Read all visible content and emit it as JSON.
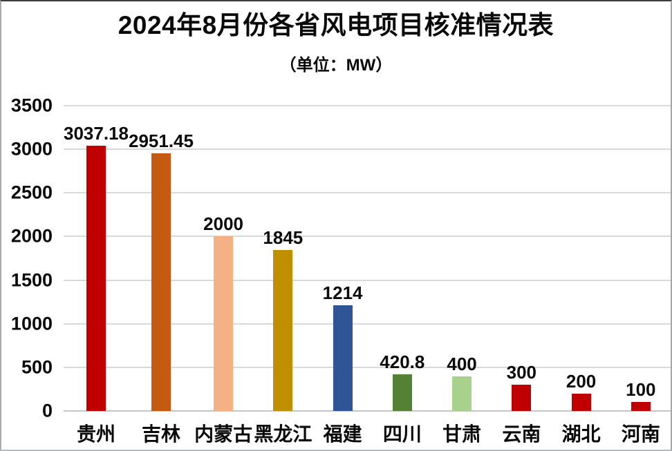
{
  "chart_data": {
    "type": "bar",
    "title": "2024年8月份各省风电项目核准情况表",
    "subtitle": "（单位：MW）",
    "unit": "MW",
    "categories": [
      "贵州",
      "吉林",
      "内蒙古",
      "黑龙江",
      "福建",
      "四川",
      "甘肃",
      "云南",
      "湖北",
      "河南"
    ],
    "values": [
      3037.18,
      2951.45,
      2000,
      1845,
      1214,
      420.8,
      400,
      300,
      200,
      100
    ],
    "value_labels": [
      "3037.18",
      "2951.45",
      "2000",
      "1845",
      "1214",
      "420.8",
      "400",
      "300",
      "200",
      "100"
    ],
    "bar_colors": [
      "#c00000",
      "#c55a11",
      "#f4b183",
      "#bf8f00",
      "#2f5597",
      "#548235",
      "#a9d18e",
      "#c00000",
      "#c00000",
      "#c00000"
    ],
    "xlabel": "",
    "ylabel": "",
    "ylim": [
      0,
      3500
    ],
    "yticks": [
      0,
      500,
      1000,
      1500,
      2000,
      2500,
      3000,
      3500
    ],
    "grid": "horizontal",
    "gridline_color": "#d9d9d9",
    "legend_position": "none",
    "background_color": "#ffffff"
  }
}
